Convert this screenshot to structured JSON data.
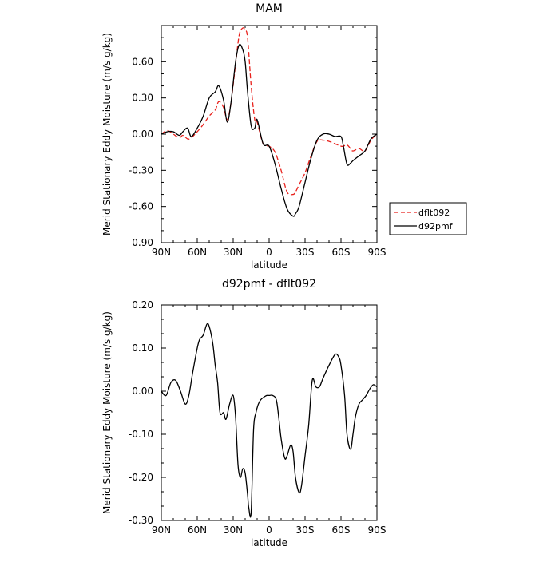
{
  "chart_data": [
    {
      "type": "line",
      "title": "MAM",
      "xlabel": "latitude",
      "ylabel": "Merid Stationary Eddy Moisture (m/s g/kg)",
      "x_tick_values": [
        90,
        60,
        30,
        0,
        -30,
        -60,
        -90
      ],
      "x_tick_labels": [
        "90N",
        "60N",
        "30N",
        "0",
        "30S",
        "60S",
        "90S"
      ],
      "xlim": [
        90,
        -90
      ],
      "ylim": [
        -0.9,
        0.9
      ],
      "y_tick_values": [
        -0.9,
        -0.6,
        -0.3,
        0.0,
        0.3,
        0.6
      ],
      "y_tick_labels": [
        "-0.90",
        "-0.60",
        "-0.30",
        "0.00",
        "0.30",
        "0.60"
      ],
      "legend_position": "right",
      "series": [
        {
          "name": "dflt092",
          "color": "#e8211c",
          "dash": "dashed",
          "x": [
            90,
            85,
            80,
            75,
            72,
            68,
            65,
            60,
            55,
            50,
            45,
            42,
            38,
            35,
            32,
            28,
            25,
            22,
            20,
            18,
            15,
            12,
            10,
            5,
            0,
            -5,
            -10,
            -15,
            -20,
            -22,
            -25,
            -30,
            -35,
            -40,
            -45,
            -50,
            -55,
            -60,
            -62,
            -65,
            -68,
            -70,
            -75,
            -80,
            -85,
            -90
          ],
          "y": [
            0.0,
            0.03,
            0.0,
            -0.03,
            -0.01,
            -0.04,
            -0.03,
            0.02,
            0.08,
            0.15,
            0.2,
            0.27,
            0.22,
            0.12,
            0.25,
            0.58,
            0.82,
            0.88,
            0.86,
            0.8,
            0.4,
            0.12,
            0.1,
            -0.08,
            -0.1,
            -0.15,
            -0.3,
            -0.48,
            -0.5,
            -0.48,
            -0.42,
            -0.32,
            -0.18,
            -0.06,
            -0.05,
            -0.06,
            -0.08,
            -0.1,
            -0.1,
            -0.09,
            -0.12,
            -0.14,
            -0.12,
            -0.14,
            -0.05,
            0.0
          ]
        },
        {
          "name": "d92pmf",
          "color": "#000000",
          "dash": "solid",
          "x": [
            90,
            85,
            80,
            75,
            72,
            68,
            65,
            60,
            55,
            50,
            45,
            42,
            38,
            35,
            32,
            28,
            25,
            22,
            20,
            18,
            15,
            12,
            10,
            5,
            0,
            -5,
            -10,
            -15,
            -20,
            -22,
            -25,
            -30,
            -35,
            -40,
            -45,
            -50,
            -55,
            -60,
            -62,
            -65,
            -68,
            -70,
            -75,
            -80,
            -85,
            -90
          ],
          "y": [
            0.0,
            0.02,
            0.02,
            -0.01,
            0.02,
            0.05,
            -0.02,
            0.05,
            0.15,
            0.3,
            0.35,
            0.4,
            0.28,
            0.1,
            0.25,
            0.6,
            0.74,
            0.7,
            0.6,
            0.35,
            0.07,
            0.05,
            0.12,
            -0.08,
            -0.1,
            -0.25,
            -0.45,
            -0.62,
            -0.68,
            -0.66,
            -0.6,
            -0.4,
            -0.2,
            -0.05,
            0.0,
            0.0,
            -0.02,
            -0.02,
            -0.1,
            -0.25,
            -0.24,
            -0.22,
            -0.18,
            -0.14,
            -0.04,
            0.0
          ]
        }
      ]
    },
    {
      "type": "line",
      "title": "d92pmf - dflt092",
      "xlabel": "latitude",
      "ylabel": "Merid Stationary Eddy Moisture (m/s g/kg)",
      "x_tick_values": [
        90,
        60,
        30,
        0,
        -30,
        -60,
        -90
      ],
      "x_tick_labels": [
        "90N",
        "60N",
        "30N",
        "0",
        "30S",
        "60S",
        "90S"
      ],
      "xlim": [
        90,
        -90
      ],
      "ylim": [
        -0.3,
        0.2
      ],
      "y_tick_values": [
        -0.3,
        -0.2,
        -0.1,
        0.0,
        0.1,
        0.2
      ],
      "y_tick_labels": [
        "-0.30",
        "-0.20",
        "-0.10",
        "0.00",
        "0.10",
        "0.20"
      ],
      "series": [
        {
          "color": "#000000",
          "dash": "solid",
          "x": [
            90,
            86,
            82,
            78,
            74,
            70,
            67,
            64,
            60,
            58,
            55,
            52,
            50,
            47,
            45,
            43,
            41,
            38,
            36,
            33,
            30,
            28,
            26,
            24,
            22,
            20,
            18,
            17,
            15,
            13,
            11,
            9,
            7,
            5,
            2,
            0,
            -3,
            -6,
            -8,
            -10,
            -13,
            -15,
            -18,
            -20,
            -22,
            -25,
            -27,
            -30,
            -33,
            -36,
            -39,
            -42,
            -45,
            -50,
            -55,
            -58,
            -60,
            -63,
            -65,
            -68,
            -70,
            -72,
            -75,
            -78,
            -81,
            -84,
            -87,
            -90
          ],
          "y": [
            0.0,
            -0.01,
            0.02,
            0.025,
            0.0,
            -0.03,
            -0.01,
            0.04,
            0.1,
            0.12,
            0.13,
            0.155,
            0.15,
            0.11,
            0.06,
            0.02,
            -0.05,
            -0.05,
            -0.065,
            -0.03,
            -0.01,
            -0.06,
            -0.17,
            -0.2,
            -0.18,
            -0.19,
            -0.24,
            -0.27,
            -0.28,
            -0.09,
            -0.05,
            -0.03,
            -0.02,
            -0.015,
            -0.01,
            -0.01,
            -0.01,
            -0.02,
            -0.06,
            -0.11,
            -0.155,
            -0.15,
            -0.125,
            -0.14,
            -0.2,
            -0.235,
            -0.22,
            -0.15,
            -0.08,
            0.025,
            0.01,
            0.01,
            0.03,
            0.06,
            0.085,
            0.08,
            0.06,
            -0.01,
            -0.1,
            -0.135,
            -0.1,
            -0.06,
            -0.03,
            -0.02,
            -0.01,
            0.005,
            0.015,
            0.01
          ]
        }
      ]
    }
  ]
}
